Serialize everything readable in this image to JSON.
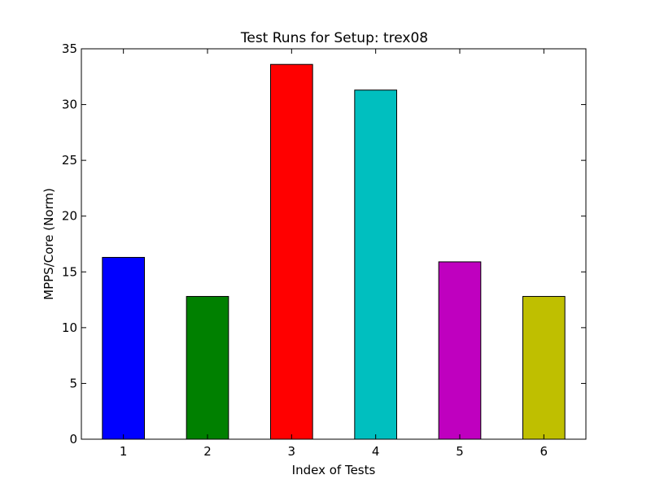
{
  "chart_data": {
    "type": "bar",
    "title": "Test Runs for Setup: trex08",
    "xlabel": "Index of Tests",
    "ylabel": "MPPS/Core (Norm)",
    "categories": [
      "1",
      "2",
      "3",
      "4",
      "5",
      "6"
    ],
    "values": [
      16.3,
      12.8,
      33.6,
      31.3,
      15.9,
      12.8
    ],
    "colors": [
      "#0000ff",
      "#008000",
      "#ff0000",
      "#00bfbf",
      "#bf00bf",
      "#bfbf00"
    ],
    "ylim": [
      0,
      35
    ],
    "yticks": [
      0,
      5,
      10,
      15,
      20,
      25,
      30,
      35
    ],
    "grid": false,
    "legend": "none"
  }
}
